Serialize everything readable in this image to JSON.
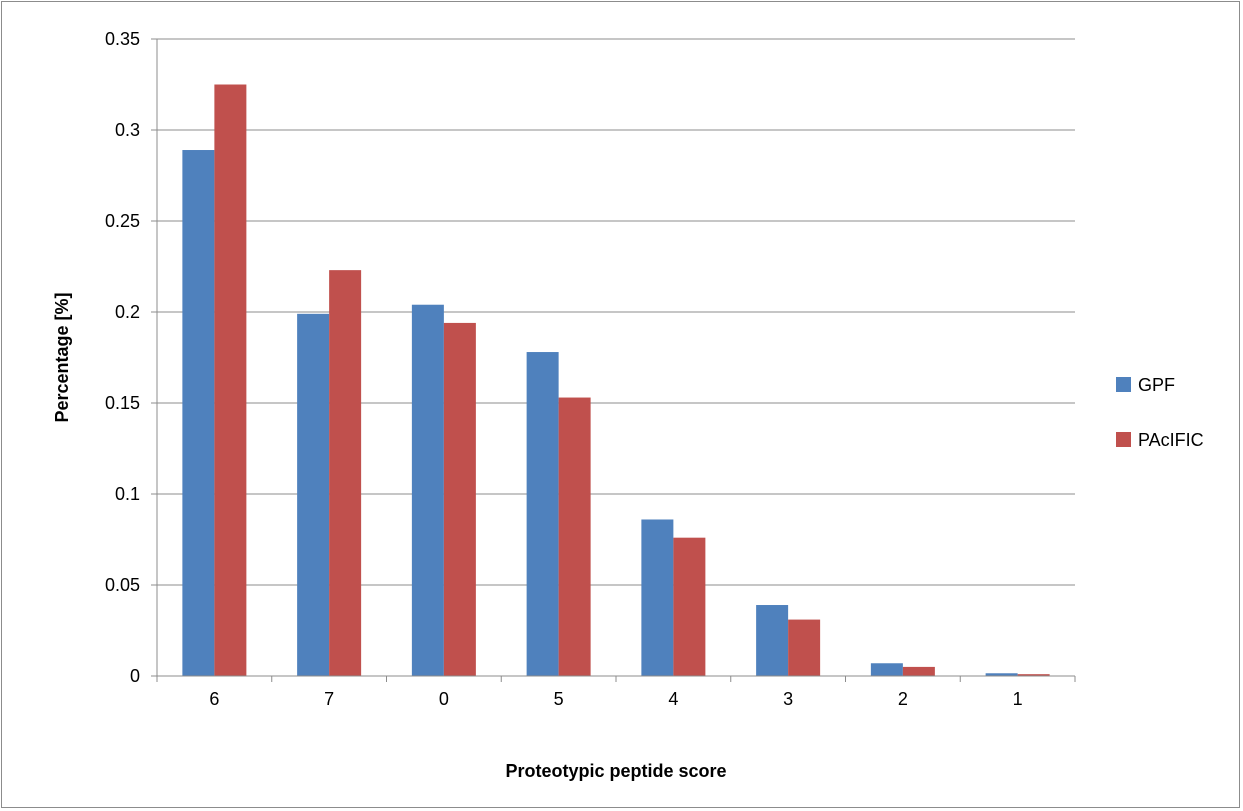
{
  "chart_data": {
    "type": "bar",
    "categories": [
      "6",
      "7",
      "0",
      "5",
      "4",
      "3",
      "2",
      "1"
    ],
    "series": [
      {
        "name": "GPF",
        "color": "#4f81bd",
        "values": [
          0.289,
          0.199,
          0.204,
          0.178,
          0.086,
          0.039,
          0.007,
          0.0015
        ]
      },
      {
        "name": "PAcIFIC",
        "color": "#c0504d",
        "values": [
          0.325,
          0.223,
          0.194,
          0.153,
          0.076,
          0.031,
          0.005,
          0.001
        ]
      }
    ],
    "title": "",
    "xlabel": "Proteotypic peptide score",
    "ylabel": "Percentage [%]",
    "ylim": [
      0,
      0.35
    ],
    "yticks": [
      "0",
      "0.05",
      "0.1",
      "0.15",
      "0.2",
      "0.25",
      "0.3",
      "0.35"
    ],
    "grid": "horizontal",
    "legend_position": "right"
  }
}
